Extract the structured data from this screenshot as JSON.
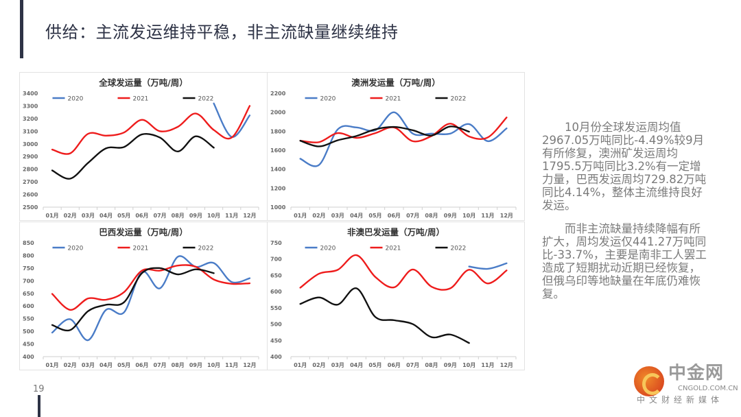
{
  "slide": {
    "title": "供给：主流发运维持平稳，非主流缺量继续维持",
    "page_number": "19",
    "summary": [
      "10月份全球发运周均值2967.05万吨同比-4.49%较9月有所修复，澳洲矿发运周均1795.5万吨同比3.2%有一定增力量，巴西发运周均729.82万吨同比4.14%，整体主流维持良好发运。",
      "而非主流缺量持续降幅有所扩大，周均发运仅441.27万吨同比-33.7%，主要是南非工人罢工造成了短期扰动近期已经恢复，但俄乌印等地缺量在年底仍难恢复。"
    ],
    "logo": {
      "name": "中金网",
      "url": "CNGOLD.COM.CN",
      "tagline": "中文财经新媒体"
    }
  },
  "colors": {
    "2020": "#4a7cc7",
    "2021": "#ee1c1c",
    "2022": "#111111",
    "title": "#2e3346"
  },
  "chart_data": [
    {
      "type": "line",
      "title": "全球发运量（万吨/周）",
      "categories": [
        "01月",
        "02月",
        "03月",
        "04月",
        "05月",
        "06月",
        "07月",
        "08月",
        "09月",
        "10月",
        "11月",
        "12月"
      ],
      "ylim": [
        2500,
        3400
      ],
      "yticks": [
        2500,
        2600,
        2700,
        2800,
        2900,
        3000,
        3100,
        3200,
        3300,
        3400
      ],
      "legend": "top",
      "series": [
        {
          "name": "2020",
          "values": [
            null,
            null,
            null,
            null,
            null,
            null,
            null,
            null,
            null,
            3320,
            3055,
            3225
          ]
        },
        {
          "name": "2021",
          "values": [
            2955,
            2925,
            3080,
            3065,
            3090,
            3190,
            3100,
            3135,
            3240,
            3110,
            3050,
            3300
          ]
        },
        {
          "name": "2022",
          "values": [
            2790,
            2725,
            2850,
            2965,
            2975,
            3075,
            3050,
            2940,
            3060,
            2970,
            null,
            null
          ]
        }
      ]
    },
    {
      "type": "line",
      "title": "澳洲发运量（万吨/周）",
      "categories": [
        "01月",
        "02月",
        "03月",
        "04月",
        "05月",
        "06月",
        "07月",
        "08月",
        "09月",
        "10月",
        "11月",
        "12月"
      ],
      "ylim": [
        1000,
        2200
      ],
      "yticks": [
        1000,
        1200,
        1400,
        1600,
        1800,
        2000,
        2200
      ],
      "legend": "top",
      "series": [
        {
          "name": "2020",
          "values": [
            1510,
            1445,
            1820,
            1840,
            1810,
            2000,
            1775,
            1775,
            1775,
            1875,
            1695,
            1830
          ]
        },
        {
          "name": "2021",
          "values": [
            1700,
            1685,
            1780,
            1730,
            1780,
            1840,
            1695,
            1750,
            1880,
            1745,
            1735,
            1945
          ]
        },
        {
          "name": "2022",
          "values": [
            1700,
            1640,
            1705,
            1750,
            1820,
            1845,
            1810,
            1755,
            1850,
            1795,
            null,
            null
          ]
        }
      ]
    },
    {
      "type": "line",
      "title": "巴西发运量（万吨/周）",
      "categories": [
        "01月",
        "02月",
        "03月",
        "04月",
        "05月",
        "06月",
        "07月",
        "08月",
        "09月",
        "10月",
        "11月",
        "12月"
      ],
      "ylim": [
        400,
        850
      ],
      "yticks": [
        400,
        450,
        500,
        550,
        600,
        650,
        700,
        750,
        800,
        850
      ],
      "legend": "top",
      "series": [
        {
          "name": "2020",
          "values": [
            495,
            548,
            465,
            585,
            575,
            735,
            670,
            795,
            755,
            770,
            695,
            710
          ]
        },
        {
          "name": "2021",
          "values": [
            648,
            585,
            630,
            625,
            655,
            740,
            740,
            760,
            755,
            705,
            688,
            690
          ]
        },
        {
          "name": "2022",
          "values": [
            525,
            505,
            580,
            605,
            615,
            730,
            750,
            725,
            745,
            730,
            null,
            null
          ]
        }
      ]
    },
    {
      "type": "line",
      "title": "非澳巴发运量（万吨/周）",
      "categories": [
        "01月",
        "02月",
        "03月",
        "04月",
        "05月",
        "06月",
        "07月",
        "08月",
        "09月",
        "10月",
        "11月",
        "12月"
      ],
      "ylim": [
        400,
        750
      ],
      "yticks": [
        400,
        450,
        500,
        550,
        600,
        650,
        700,
        750
      ],
      "legend": "top",
      "series": [
        {
          "name": "2020",
          "values": [
            null,
            null,
            null,
            null,
            null,
            null,
            null,
            null,
            null,
            677,
            670,
            687
          ]
        },
        {
          "name": "2021",
          "values": [
            612,
            655,
            667,
            712,
            645,
            613,
            668,
            615,
            610,
            667,
            625,
            665
          ]
        },
        {
          "name": "2022",
          "values": [
            562,
            582,
            560,
            610,
            522,
            512,
            500,
            460,
            468,
            442,
            null,
            null
          ]
        }
      ]
    }
  ]
}
